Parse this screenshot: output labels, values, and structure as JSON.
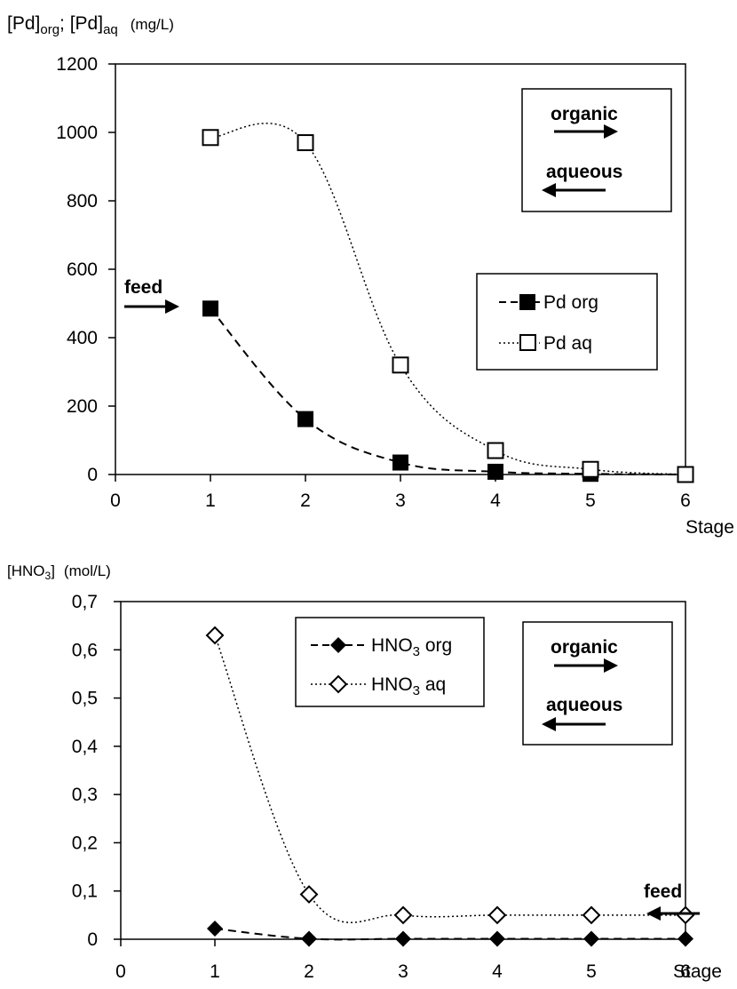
{
  "chart_data": [
    {
      "type": "line",
      "ylabel": {
        "part1": "[Pd]",
        "sub1": "org",
        "sep": "; ",
        "part2": "[Pd]",
        "sub2": "aq",
        "unit": "(mg/L)"
      },
      "xlabel": "Stage",
      "xlim": [
        0,
        6
      ],
      "ylim": [
        0,
        1200
      ],
      "x_ticks": [
        "0",
        "1",
        "2",
        "3",
        "4",
        "5",
        "6"
      ],
      "y_ticks": [
        "0",
        "200",
        "400",
        "600",
        "800",
        "1000",
        "1200"
      ],
      "x": [
        1,
        2,
        3,
        4,
        5,
        6
      ],
      "series": [
        {
          "name": "Pd org",
          "marker": "square-filled",
          "line": "dashed",
          "values": [
            485,
            162,
            35,
            8,
            2,
            0
          ]
        },
        {
          "name": "Pd aq",
          "marker": "square-open",
          "line": "dotted",
          "values": [
            985,
            970,
            320,
            70,
            15,
            0
          ]
        }
      ],
      "annotations": {
        "feed": "feed",
        "organic": "organic",
        "aqueous": "aqueous"
      },
      "legend_position": "center-right"
    },
    {
      "type": "line",
      "ylabel": {
        "part1": "[HNO",
        "sub1": "3",
        "part2": "]",
        "unit": "(mol/L)"
      },
      "xlabel": "Stage",
      "xlim": [
        0,
        6
      ],
      "ylim": [
        0,
        0.7
      ],
      "x_ticks": [
        "0",
        "1",
        "2",
        "3",
        "4",
        "5",
        "6"
      ],
      "y_ticks": [
        "0",
        "0,1",
        "0,2",
        "0,3",
        "0,4",
        "0,5",
        "0,6",
        "0,7"
      ],
      "x": [
        1,
        2,
        3,
        4,
        5,
        6
      ],
      "series": [
        {
          "name_main": "HNO",
          "name_sub": "3",
          "name_rest": " org",
          "marker": "diamond-filled",
          "line": "dashed",
          "values": [
            0.022,
            0.001,
            0.001,
            0.001,
            0.001,
            0.001
          ]
        },
        {
          "name_main": "HNO",
          "name_sub": "3",
          "name_rest": " aq",
          "marker": "diamond-open",
          "line": "dotted",
          "values": [
            0.63,
            0.093,
            0.05,
            0.05,
            0.05,
            0.05
          ]
        }
      ],
      "annotations": {
        "feed": "feed",
        "organic": "organic",
        "aqueous": "aqueous"
      },
      "legend_position": "top-center"
    }
  ]
}
